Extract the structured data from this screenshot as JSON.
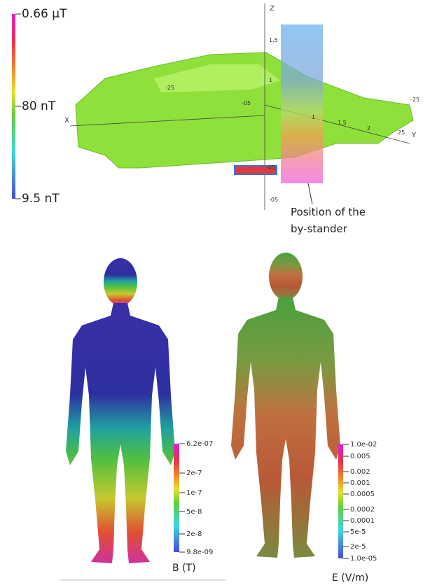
{
  "top_panel": {
    "colorbar_labels": [
      "0.66 μT",
      "80 nT",
      "9.5 nT"
    ],
    "axis_labels": {
      "z": "Z",
      "x": "X",
      "y": "Y"
    },
    "axis_numbers": [
      "1.5",
      "1",
      "-05",
      "1",
      "1.5",
      "2",
      "25",
      "-25",
      "-25",
      "-05",
      "-05"
    ],
    "annotation": [
      "Position of the",
      "by-stander"
    ]
  },
  "b_field_panel": {
    "colorbar_labels": [
      "6.2e-07",
      "2e-7",
      "1e-7",
      "5e-8",
      "2e-8",
      "9.8e-09"
    ],
    "title": "B (T)"
  },
  "e_field_panel": {
    "colorbar_labels": [
      "1.0e-02",
      "0.005",
      "0.002",
      "0.001",
      "0.0005",
      "0.0002",
      "0.0001",
      "5e-5",
      "2e-5",
      "1.0e-05"
    ],
    "title": "E (V/m)"
  }
}
